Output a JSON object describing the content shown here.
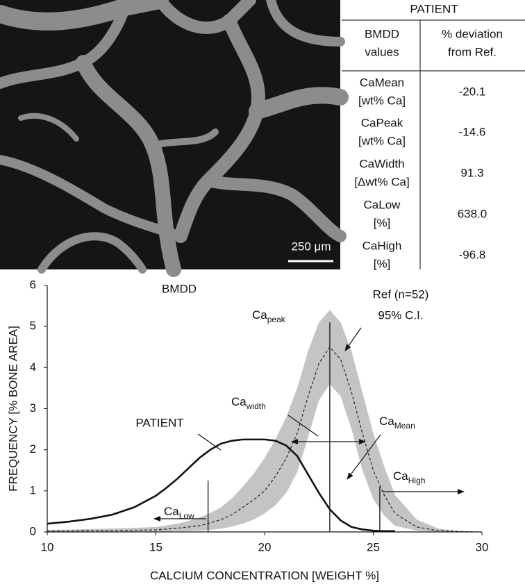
{
  "image": {
    "scale_bar": "250 μm"
  },
  "table": {
    "title": "PATIENT",
    "header": [
      [
        "BMDD",
        "values"
      ],
      [
        "% deviation",
        "from Ref."
      ]
    ],
    "rows": [
      {
        "name": [
          "CaMean",
          "[wt% Ca]"
        ],
        "value": "-20.1"
      },
      {
        "name": [
          "CaPeak",
          "[wt% Ca]"
        ],
        "value": "-14.6"
      },
      {
        "name": [
          "CaWidth",
          "[Δwt% Ca]"
        ],
        "value": "91.3"
      },
      {
        "name": [
          "CaLow",
          "[%]"
        ],
        "value": "638.0"
      },
      {
        "name": [
          "CaHigh",
          "[%]"
        ],
        "value": "-96.8"
      }
    ]
  },
  "chart_data": {
    "type": "line",
    "title": "BMDD",
    "x_label": "CALCIUM CONCENTRATION [WEIGHT %]",
    "y_label": "FREQUENCY [% BONE AREA]",
    "x": [
      10,
      11,
      12,
      13,
      14,
      15,
      15.5,
      16,
      16.5,
      17,
      17.5,
      18,
      18.5,
      19,
      19.5,
      20,
      20.5,
      21,
      21.5,
      22,
      22.5,
      23,
      23.5,
      24,
      24.5,
      25,
      25.5,
      26,
      27,
      28,
      29,
      30
    ],
    "series": [
      {
        "name": "PATIENT",
        "color": "#111111",
        "values": [
          0.2,
          0.25,
          0.32,
          0.42,
          0.6,
          0.88,
          1.08,
          1.3,
          1.55,
          1.8,
          2.0,
          2.15,
          2.22,
          2.25,
          2.25,
          2.25,
          2.22,
          2.1,
          1.85,
          1.4,
          0.95,
          0.55,
          0.28,
          0.12,
          0.06,
          0.03,
          0.02,
          0.02,
          null,
          null,
          null,
          null
        ]
      },
      {
        "name": "Ref (n=52)",
        "color": "#222222",
        "dashed": true,
        "values": [
          0.02,
          0.02,
          0.03,
          0.03,
          0.04,
          0.05,
          0.07,
          0.09,
          0.12,
          0.15,
          0.22,
          0.3,
          0.42,
          0.6,
          0.78,
          1.0,
          1.35,
          1.8,
          2.4,
          3.3,
          4.1,
          4.5,
          4.2,
          3.4,
          2.4,
          1.5,
          0.9,
          0.45,
          0.12,
          0.03,
          0.01,
          0
        ]
      },
      {
        "name": "95% C.I.",
        "color": "#c4c4c4",
        "upper": [
          0.05,
          0.06,
          0.07,
          0.08,
          0.1,
          0.12,
          0.16,
          0.2,
          0.27,
          0.35,
          0.46,
          0.6,
          0.82,
          1.1,
          1.42,
          1.8,
          2.25,
          2.8,
          3.5,
          4.4,
          5.1,
          5.4,
          5.1,
          4.4,
          3.4,
          2.4,
          1.6,
          0.9,
          0.3,
          0.08,
          0.02,
          0
        ],
        "lower": [
          0,
          0,
          0,
          0,
          0.01,
          0.01,
          0.01,
          0.02,
          0.02,
          0.03,
          0.05,
          0.08,
          0.13,
          0.2,
          0.3,
          0.45,
          0.65,
          0.95,
          1.45,
          2.3,
          3.2,
          3.6,
          3.3,
          2.5,
          1.5,
          0.8,
          0.4,
          0.15,
          0.03,
          0,
          0,
          0
        ]
      }
    ],
    "markers": [
      {
        "x": 17.4,
        "y": 1.25
      },
      {
        "x": 23,
        "y": 5.1
      },
      {
        "x": 25.3,
        "y": 1.1
      }
    ],
    "annotations": [
      {
        "text": "Ca",
        "sub": "peak"
      },
      {
        "text": "Ca",
        "sub": "width"
      },
      {
        "text": "Ca",
        "sub": "Mean"
      },
      {
        "text": "Ca",
        "sub": "High"
      },
      {
        "text": "Ca",
        "sub": "Low"
      }
    ],
    "xlim": [
      10,
      30
    ],
    "ylim": [
      0,
      6
    ],
    "xticks": [
      10,
      15,
      20,
      25,
      30
    ],
    "yticks": [
      0,
      1,
      2,
      3,
      4,
      5,
      6
    ]
  }
}
